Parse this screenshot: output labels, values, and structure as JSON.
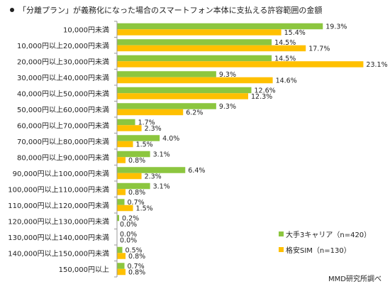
{
  "chart_data": {
    "type": "bar",
    "orientation": "horizontal",
    "title": "「分離プラン」が義務化になった場合のスマートフォン本体に支払える許容範囲の金額",
    "categories": [
      "10,000円未満",
      "10,000円以上20,000円未満",
      "20,000円以上30,000円未満",
      "30,000円以上40,000円未満",
      "40,000円以上50,000円未満",
      "50,000円以上60,000円未満",
      "60,000円以上70,000円未満",
      "70,000円以上80,000円未満",
      "80,000円以上90,000円未満",
      "90,000円以上100,000円未満",
      "100,000円以上110,000円未満",
      "110,000円以上120,000円未満",
      "120,000円以上130,000円未満",
      "130,000円以上140,000円未満",
      "140,000円以上150,000円未満",
      "150,000円以上"
    ],
    "series": [
      {
        "name": "大手3キャリア（n=420）",
        "color": "#8cc63f",
        "values": [
          19.3,
          14.5,
          14.5,
          9.3,
          12.6,
          9.3,
          1.7,
          4.0,
          3.1,
          6.4,
          3.1,
          0.7,
          0.2,
          0.0,
          0.5,
          0.7
        ]
      },
      {
        "name": "格安SIM（n=130）",
        "color": "#ffc000",
        "values": [
          15.4,
          17.7,
          23.1,
          14.6,
          12.3,
          6.2,
          2.3,
          1.5,
          0.8,
          2.3,
          0.8,
          1.5,
          0.0,
          0.0,
          0.8,
          0.8
        ]
      }
    ],
    "value_suffix": "%",
    "xlim": [
      0,
      25
    ],
    "grid": false,
    "legend_position": "bottom-right"
  },
  "source_note": "MMD研究所調べ",
  "colors": {
    "axis": "#9a9a9a",
    "text": "#222222"
  }
}
